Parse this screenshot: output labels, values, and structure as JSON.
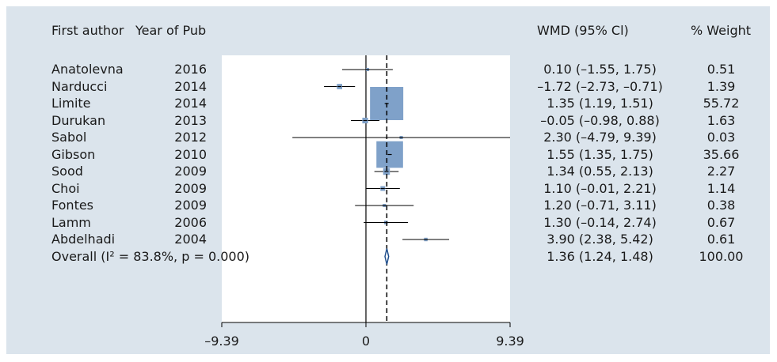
{
  "chart_data": {
    "type": "forest",
    "headers": {
      "author": "First author",
      "year": "Year of Pub",
      "effect": "WMD (95% Cl)",
      "weight": "% Weight"
    },
    "studies": [
      {
        "author": "Anatolevna",
        "year": "2016",
        "est": 0.1,
        "lo": -1.55,
        "hi": 1.75,
        "label": "0.10 (–1.55, 1.75)",
        "weight": 0.51,
        "weight_label": "0.51"
      },
      {
        "author": "Narducci",
        "year": "2014",
        "est": -1.72,
        "lo": -2.73,
        "hi": -0.71,
        "label": "–1.72 (–2.73, –0.71)",
        "weight": 1.39,
        "weight_label": "1.39"
      },
      {
        "author": "Limite",
        "year": "2014",
        "est": 1.35,
        "lo": 1.19,
        "hi": 1.51,
        "label": "1.35 (1.19, 1.51)",
        "weight": 55.72,
        "weight_label": "55.72"
      },
      {
        "author": "Durukan",
        "year": "2013",
        "est": -0.05,
        "lo": -0.98,
        "hi": 0.88,
        "label": "–0.05 (–0.98, 0.88)",
        "weight": 1.63,
        "weight_label": "1.63"
      },
      {
        "author": "Sabol",
        "year": "2012",
        "est": 2.3,
        "lo": -4.79,
        "hi": 9.39,
        "label": "2.30 (–4.79, 9.39)",
        "weight": 0.03,
        "weight_label": "0.03"
      },
      {
        "author": "Gibson",
        "year": "2010",
        "est": 1.55,
        "lo": 1.35,
        "hi": 1.75,
        "label": "1.55 (1.35, 1.75)",
        "weight": 35.66,
        "weight_label": "35.66"
      },
      {
        "author": "Sood",
        "year": "2009",
        "est": 1.34,
        "lo": 0.55,
        "hi": 2.13,
        "label": "1.34 (0.55, 2.13)",
        "weight": 2.27,
        "weight_label": "2.27"
      },
      {
        "author": "Choi",
        "year": "2009",
        "est": 1.1,
        "lo": -0.01,
        "hi": 2.21,
        "label": "1.10 (–0.01, 2.21)",
        "weight": 1.14,
        "weight_label": "1.14"
      },
      {
        "author": "Fontes",
        "year": "2009",
        "est": 1.2,
        "lo": -0.71,
        "hi": 3.11,
        "label": "1.20 (–0.71, 3.11)",
        "weight": 0.38,
        "weight_label": "0.38"
      },
      {
        "author": "Lamm",
        "year": "2006",
        "est": 1.3,
        "lo": -0.14,
        "hi": 2.74,
        "label": "1.30 (–0.14, 2.74)",
        "weight": 0.67,
        "weight_label": "0.67"
      },
      {
        "author": "Abdelhadi",
        "year": "2004",
        "est": 3.9,
        "lo": 2.38,
        "hi": 5.42,
        "label": "3.90 (2.38, 5.42)",
        "weight": 0.61,
        "weight_label": "0.61"
      }
    ],
    "overall": {
      "label_text": "Overall (I² = 83.8%, p = 0.000)",
      "est": 1.36,
      "lo": 1.24,
      "hi": 1.48,
      "label": "1.36 (1.24, 1.48)",
      "weight_label": "100.00"
    },
    "xlim": [
      -9.39,
      9.39
    ],
    "xticks": [
      -9.39,
      0,
      9.39
    ],
    "xtick_labels": [
      "–9.39",
      "0",
      "9.39"
    ],
    "null_line": 0,
    "colors": {
      "panel": "#dbe4ec",
      "plot_bg": "#ffffff",
      "box": "#7fa1c9",
      "diamond": "#1f4e8c",
      "text": "#1a1a1a"
    }
  }
}
